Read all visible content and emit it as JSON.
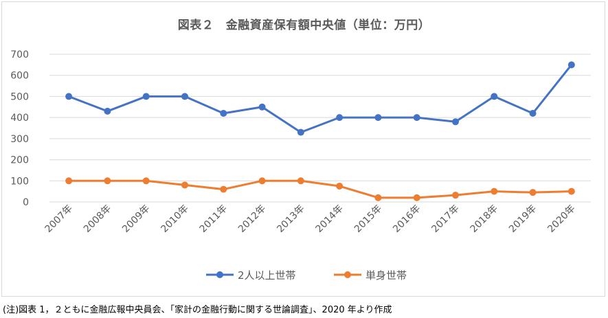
{
  "chart_data": {
    "type": "line",
    "title": "図表２　金融資産保有額中央値（単位：万円）",
    "categories": [
      "2007年",
      "2008年",
      "2009年",
      "2010年",
      "2011年",
      "2012年",
      "2013年",
      "2014年",
      "2015年",
      "2016年",
      "2017年",
      "2018年",
      "2019年",
      "2020年"
    ],
    "series": [
      {
        "name": "2人以上世帯",
        "color": "#4472c4",
        "values": [
          500,
          430,
          500,
          500,
          420,
          450,
          330,
          400,
          400,
          400,
          380,
          500,
          420,
          650
        ]
      },
      {
        "name": "単身世帯",
        "color": "#ed7d31",
        "values": [
          100,
          100,
          100,
          80,
          60,
          100,
          100,
          75,
          20,
          20,
          32,
          50,
          45,
          50
        ]
      }
    ],
    "ylim": [
      0,
      700
    ],
    "yticks": [
      0,
      100,
      200,
      300,
      400,
      500,
      600,
      700
    ],
    "grid": true,
    "legend_position": "bottom"
  },
  "source_note": "(注)図表 1，２ともに金融広報中央員会、｢家計の金融行動に関する世論調査｣、2020 年より作成"
}
